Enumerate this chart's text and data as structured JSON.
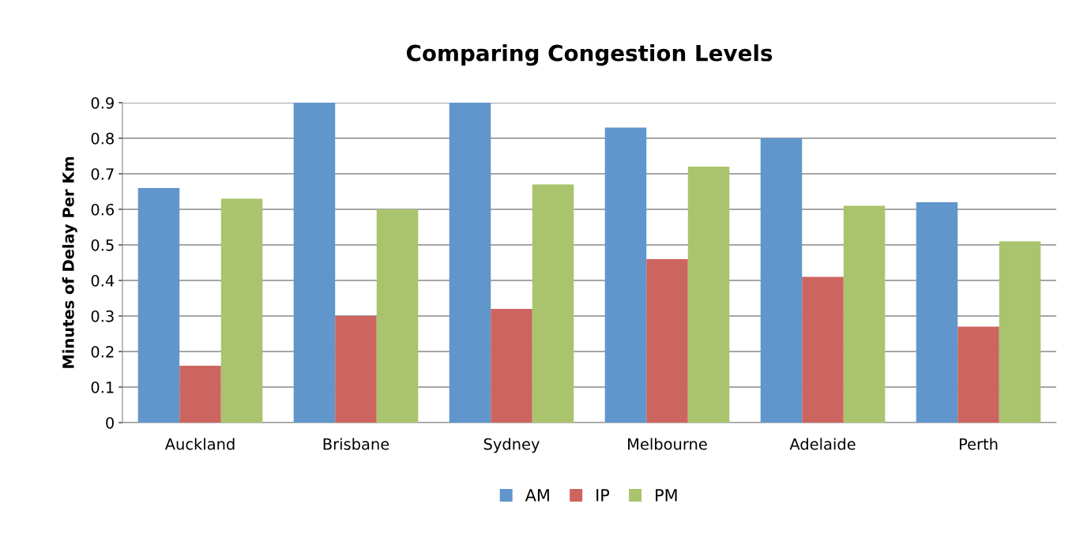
{
  "chart_data": {
    "type": "bar",
    "title": "Comparing Congestion Levels",
    "ylabel": "Minutes of Delay Per Km",
    "categories": [
      "Auckland",
      "Brisbane",
      "Sydney",
      "Melbourne",
      "Adelaide",
      "Perth"
    ],
    "series": [
      {
        "name": "AM",
        "color": "#6096cb",
        "values": [
          0.66,
          0.9,
          0.9,
          0.83,
          0.8,
          0.62
        ]
      },
      {
        "name": "IP",
        "color": "#cc655f",
        "values": [
          0.16,
          0.3,
          0.32,
          0.46,
          0.41,
          0.27
        ]
      },
      {
        "name": "PM",
        "color": "#a9c46c",
        "values": [
          0.63,
          0.6,
          0.67,
          0.72,
          0.61,
          0.51
        ]
      }
    ],
    "ylim": [
      0,
      0.9
    ],
    "yticks": [
      0,
      0.1,
      0.2,
      0.3,
      0.4,
      0.5,
      0.6,
      0.7,
      0.8,
      0.9
    ],
    "grid": "y",
    "legend": "bottom"
  }
}
